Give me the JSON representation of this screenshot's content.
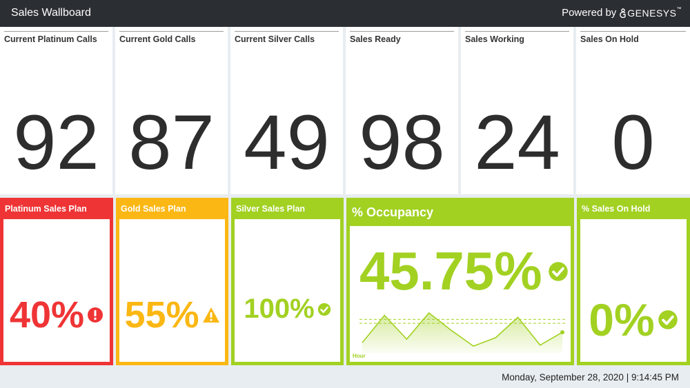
{
  "header": {
    "title": "Sales Wallboard",
    "powered_by": "Powered by",
    "brand": "GENESYS",
    "trademark": "™"
  },
  "stats": [
    {
      "label": "Current Platinum Calls",
      "value": "92"
    },
    {
      "label": "Current Gold Calls",
      "value": "87"
    },
    {
      "label": "Current Silver Calls",
      "value": "49"
    },
    {
      "label": "Sales Ready",
      "value": "98"
    },
    {
      "label": "Sales Working",
      "value": "24"
    },
    {
      "label": "Sales On Hold",
      "value": "0"
    }
  ],
  "plans": {
    "platinum": {
      "label": "Platinum Sales Plan",
      "value": "40%",
      "status": "error-icon",
      "color": "#ef3435"
    },
    "gold": {
      "label": "Gold Sales Plan",
      "value": "55%",
      "status": "warning-icon",
      "color": "#fbb713"
    },
    "silver": {
      "label": "Silver Sales Plan",
      "value": "100%",
      "status": "check-icon",
      "color": "#a2d122"
    },
    "occupancy": {
      "label": "% Occupancy",
      "value": "45.75%",
      "status": "check-icon",
      "color": "#a2d122",
      "axis_label": "Hour"
    },
    "on_hold": {
      "label": "% Sales On Hold",
      "value": "0%",
      "status": "check-icon",
      "color": "#a2d122"
    }
  },
  "chart_data": {
    "type": "area",
    "xlabel": "Hour",
    "values": [
      15,
      70,
      22,
      75,
      40,
      8,
      25,
      66,
      10,
      36
    ],
    "reference_lines": [
      62,
      54
    ],
    "ylim": [
      0,
      100
    ]
  },
  "footer": {
    "datetime": "Monday, September 28, 2020 | 9:14:45 PM"
  }
}
